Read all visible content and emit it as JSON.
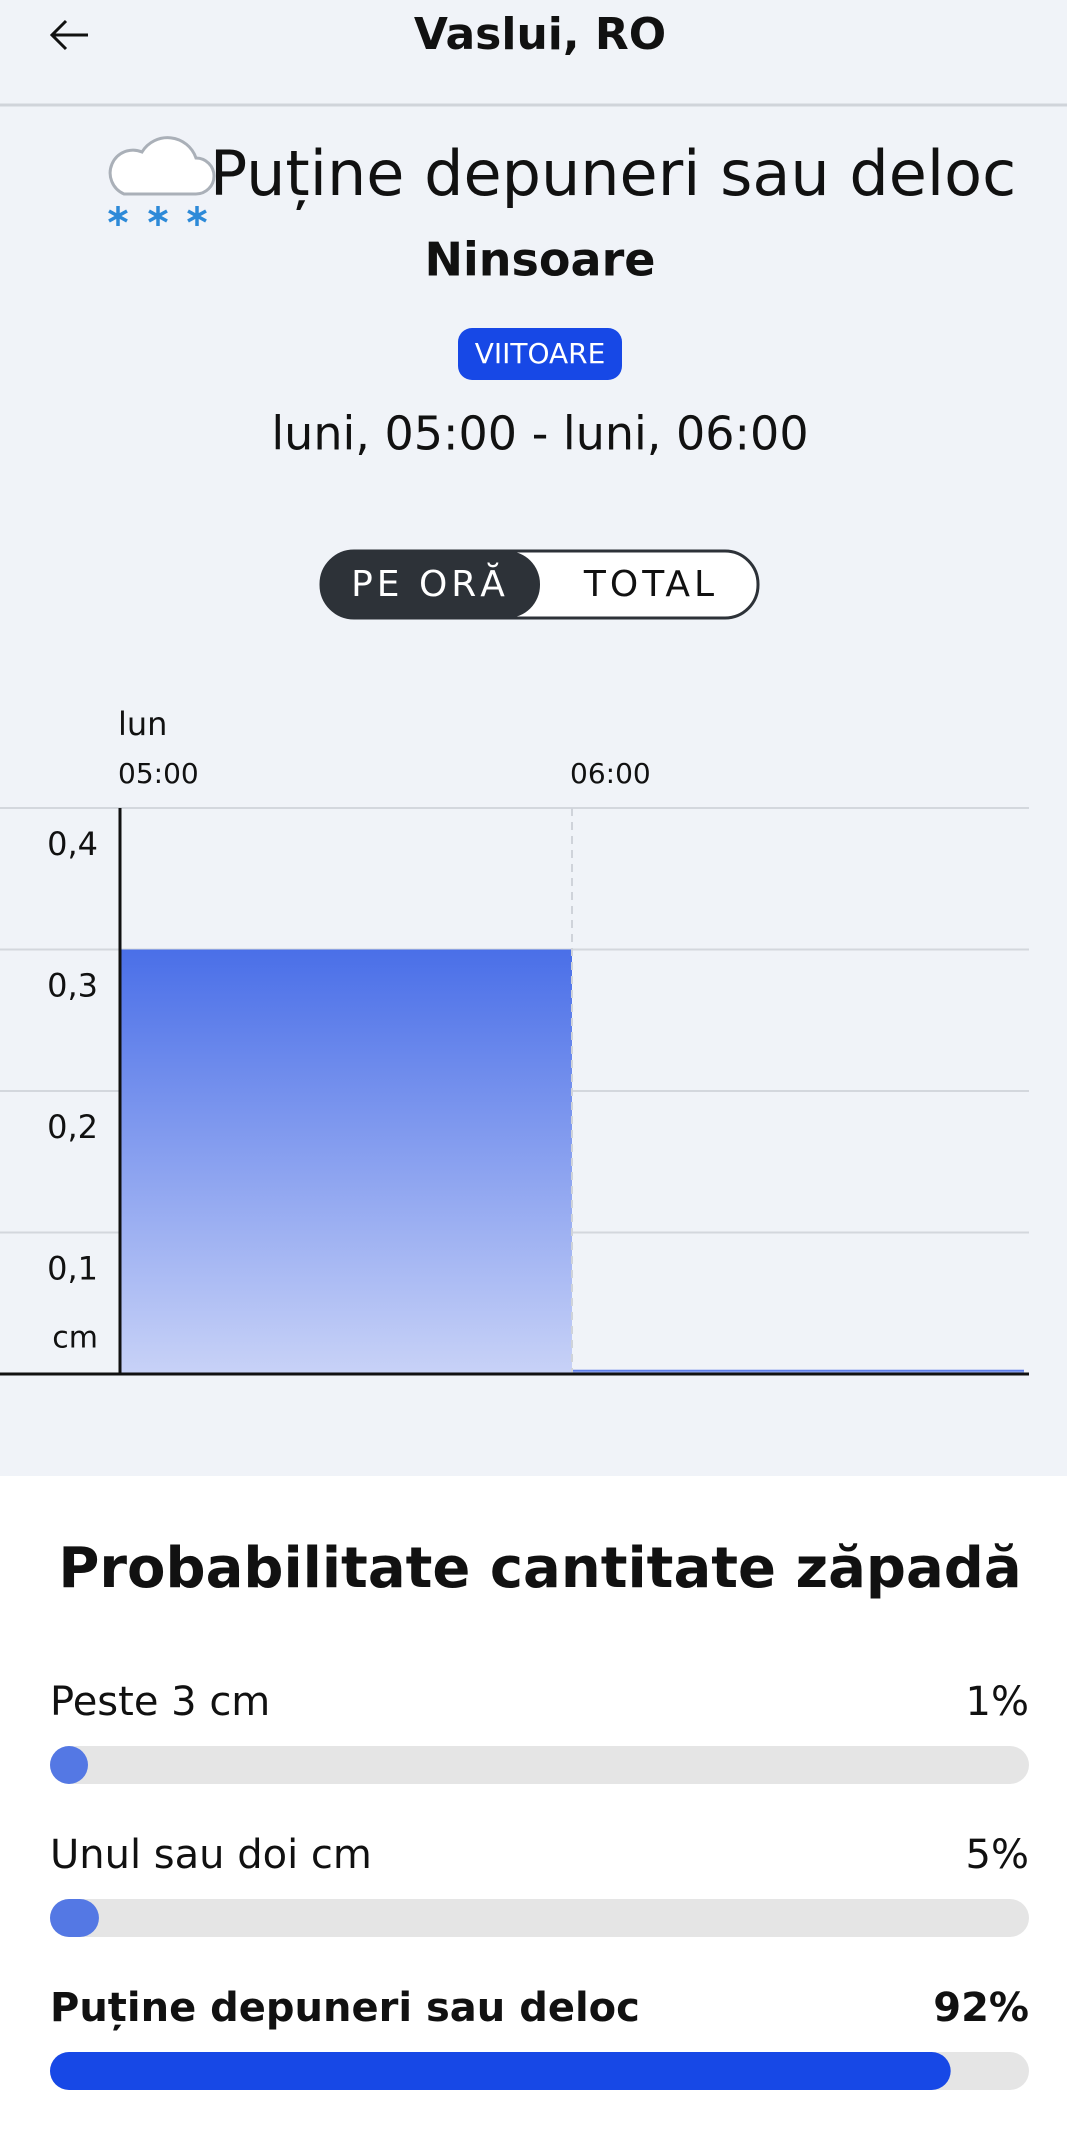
{
  "header": {
    "title": "Vaslui, RO"
  },
  "summary": {
    "title": "Puține depuneri sau deloc",
    "subtitle": "Ninsoare",
    "badge": "VIITOARE",
    "time_range": "luni, 05:00 - luni, 06:00"
  },
  "toggle": {
    "options": [
      "PE ORĂ",
      "TOTAL"
    ]
  },
  "chart_data": {
    "type": "bar",
    "day_label": "lun",
    "categories": [
      "05:00",
      "06:00"
    ],
    "values": [
      0.3,
      0.003
    ],
    "unit_label": "cm",
    "ylim": [
      0,
      0.4
    ],
    "yticks": [
      {
        "value": 0.1,
        "label": "0,1"
      },
      {
        "value": 0.2,
        "label": "0,2"
      },
      {
        "value": 0.3,
        "label": "0,3"
      },
      {
        "value": 0.4,
        "label": "0,4"
      }
    ],
    "grid": true,
    "color": "#4a6fe8"
  },
  "probabilities": {
    "title": "Probabilitate cantitate zăpadă",
    "items": [
      {
        "label": "Peste 3 cm",
        "value": 1,
        "value_label": "1%",
        "color": "#5478e4"
      },
      {
        "label": "Unul sau doi cm",
        "value": 5,
        "value_label": "5%",
        "color": "#5478e4"
      },
      {
        "label": "Puține depuneri sau deloc",
        "value": 92,
        "value_label": "92%",
        "color": "#1748e6"
      }
    ]
  }
}
